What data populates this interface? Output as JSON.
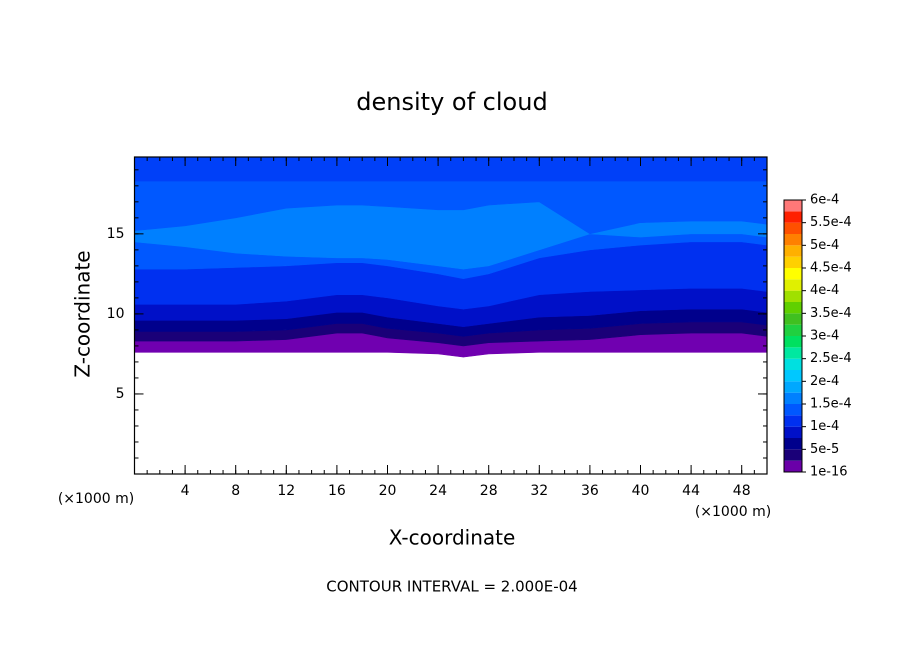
{
  "chart_data": {
    "type": "contour",
    "title": "density of cloud",
    "xlabel": "X-coordinate",
    "ylabel": "Z-coordinate",
    "axis_unit": "(×1000 m)",
    "footer": "CONTOUR INTERVAL = 2.000E-04",
    "xlim": [
      0,
      50
    ],
    "ylim": [
      0,
      19.8
    ],
    "xticks": [
      4,
      8,
      12,
      16,
      20,
      24,
      28,
      32,
      36,
      40,
      44,
      48
    ],
    "yticks": [
      5,
      10,
      15
    ],
    "x": [
      0,
      4,
      8,
      12,
      16,
      18,
      20,
      24,
      26,
      28,
      32,
      36,
      40,
      44,
      48,
      50
    ],
    "base": [
      7.6,
      7.6,
      7.6,
      7.6,
      7.6,
      7.6,
      7.6,
      7.5,
      7.3,
      7.5,
      7.6,
      7.6,
      7.6,
      7.6,
      7.6,
      7.6
    ],
    "bands": [
      {
        "value": 1e-16,
        "color": "#7000b0",
        "top": [
          8.3,
          8.3,
          8.3,
          8.4,
          8.8,
          8.8,
          8.5,
          8.2,
          8.0,
          8.2,
          8.3,
          8.4,
          8.7,
          8.8,
          8.8,
          8.6
        ]
      },
      {
        "value": 2.5e-05,
        "color": "#1a0078",
        "top": [
          8.9,
          8.9,
          8.9,
          9.0,
          9.4,
          9.4,
          9.1,
          8.8,
          8.6,
          8.8,
          9.0,
          9.1,
          9.4,
          9.5,
          9.5,
          9.3
        ]
      },
      {
        "value": 5e-05,
        "color": "#00008c",
        "top": [
          9.6,
          9.6,
          9.6,
          9.7,
          10.1,
          10.1,
          9.8,
          9.4,
          9.2,
          9.4,
          9.8,
          9.9,
          10.2,
          10.3,
          10.3,
          10.1
        ]
      },
      {
        "value": 7.5e-05,
        "color": "#0010c8",
        "top": [
          10.6,
          10.6,
          10.6,
          10.8,
          11.2,
          11.2,
          11.0,
          10.5,
          10.3,
          10.5,
          11.2,
          11.4,
          11.5,
          11.6,
          11.6,
          11.4
        ]
      },
      {
        "value": 0.0001,
        "color": "#0030f0",
        "top": [
          12.8,
          12.8,
          12.9,
          13.0,
          13.2,
          13.2,
          13.0,
          12.5,
          12.2,
          12.5,
          13.5,
          14.0,
          14.3,
          14.5,
          14.5,
          14.3
        ]
      },
      {
        "value": 0.000125,
        "color": "#0058ff",
        "top": [
          14.5,
          14.2,
          13.8,
          13.6,
          13.5,
          13.5,
          13.4,
          13.0,
          12.8,
          13.0,
          14.0,
          15.0,
          14.8,
          15.0,
          15.0,
          14.8
        ]
      },
      {
        "value": 0.00015,
        "color": "#0080ff",
        "top": [
          15.2,
          15.5,
          16.0,
          16.6,
          16.8,
          16.8,
          16.7,
          16.5,
          16.5,
          16.8,
          17.0,
          15.0,
          15.7,
          15.8,
          15.8,
          15.6
        ]
      },
      {
        "value": 0.000125,
        "color": "#0058ff",
        "top": [
          18.3,
          18.3,
          18.3,
          18.3,
          18.3,
          18.3,
          18.3,
          18.3,
          18.3,
          18.3,
          18.3,
          18.3,
          18.3,
          18.3,
          18.3,
          18.3
        ]
      },
      {
        "value": 0.0001,
        "color": "#0040f8",
        "top": [
          19.8,
          19.8,
          19.8,
          19.8,
          19.8,
          19.8,
          19.8,
          19.8,
          19.8,
          19.8,
          19.8,
          19.8,
          19.8,
          19.8,
          19.8,
          19.8
        ]
      }
    ],
    "colorbar_lim": [
      1e-16,
      0.0006
    ],
    "colorbar_colors": [
      "#6a00a8",
      "#1a0078",
      "#00008c",
      "#0010c8",
      "#0030f0",
      "#0058ff",
      "#0080ff",
      "#00a8ff",
      "#00c8ff",
      "#00e0e0",
      "#00e8a0",
      "#00e060",
      "#20d040",
      "#40c020",
      "#60d000",
      "#a0e000",
      "#e0f000",
      "#ffff00",
      "#ffd000",
      "#ffb000",
      "#ff8000",
      "#ff5000",
      "#ff2000",
      "#ff7878"
    ],
    "colorbar_ticks": [
      {
        "value": 1e-16,
        "label": "1e-16"
      },
      {
        "value": 5e-05,
        "label": "5e-5"
      },
      {
        "value": 0.0001,
        "label": "1e-4"
      },
      {
        "value": 0.00015,
        "label": "1.5e-4"
      },
      {
        "value": 0.0002,
        "label": "2e-4"
      },
      {
        "value": 0.00025,
        "label": "2.5e-4"
      },
      {
        "value": 0.0003,
        "label": "3e-4"
      },
      {
        "value": 0.00035,
        "label": "3.5e-4"
      },
      {
        "value": 0.0004,
        "label": "4e-4"
      },
      {
        "value": 0.00045,
        "label": "4.5e-4"
      },
      {
        "value": 0.0005,
        "label": "5e-4"
      },
      {
        "value": 0.00055,
        "label": "5.5e-4"
      },
      {
        "value": 0.0006,
        "label": "6e-4"
      }
    ]
  }
}
